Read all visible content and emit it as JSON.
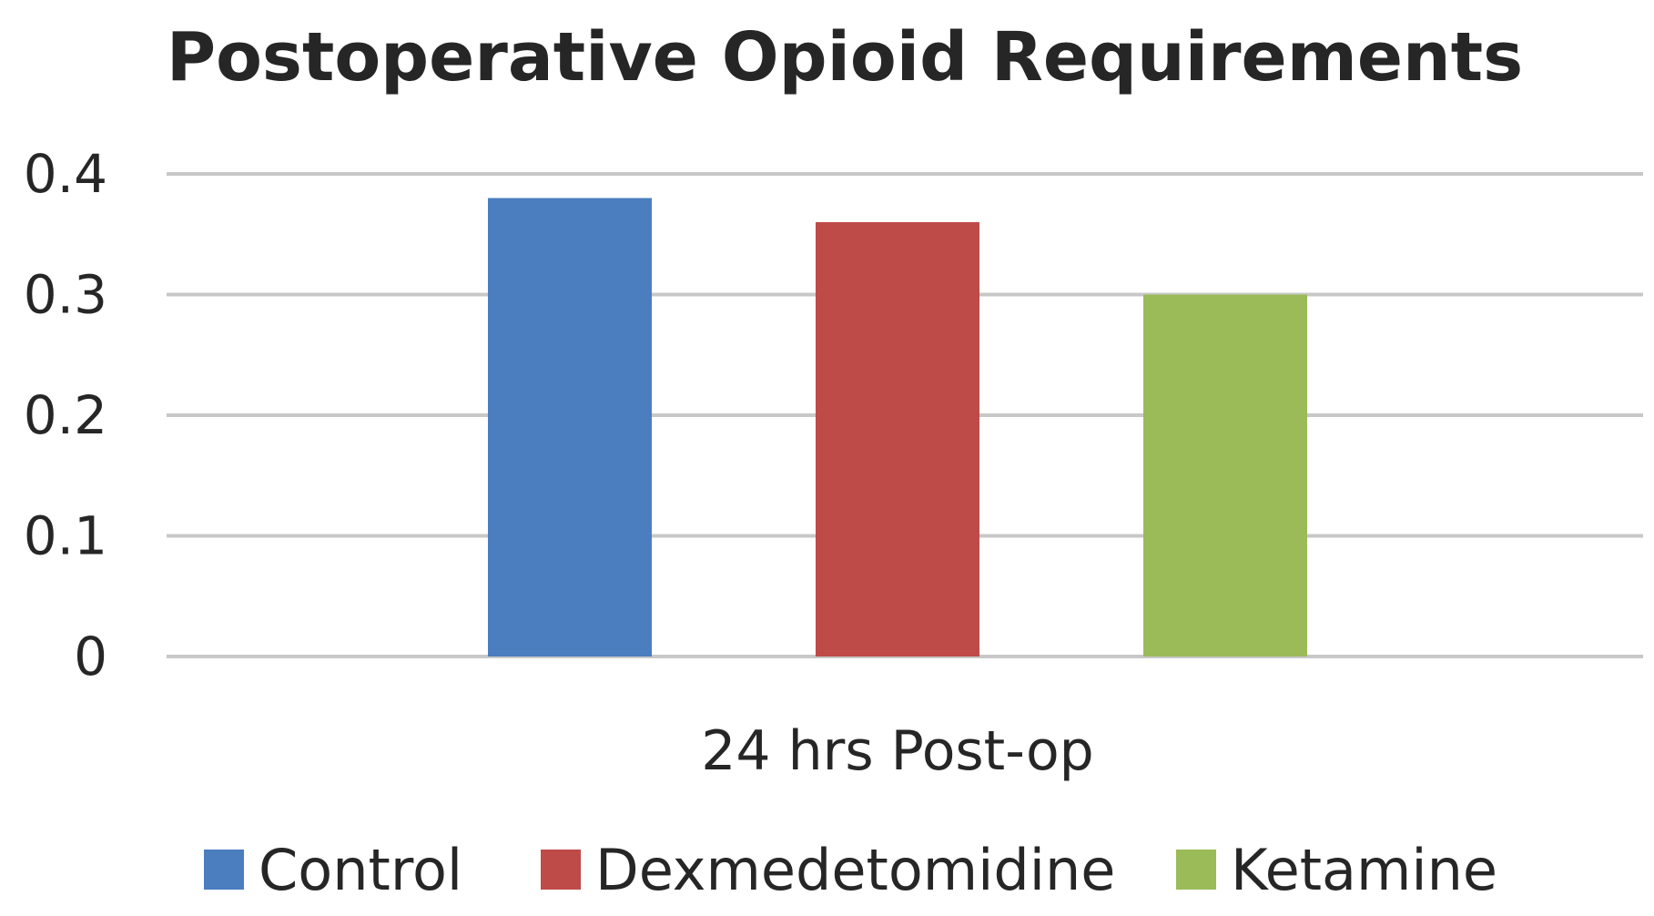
{
  "chart_data": {
    "type": "bar",
    "title": "Postoperative Opioid Requirements",
    "xlabel": "",
    "ylabel": "",
    "categories": [
      "24 hrs Post-op"
    ],
    "series": [
      {
        "name": "Control",
        "values": [
          0.38
        ],
        "color": "#4a7ebf"
      },
      {
        "name": "Dexmedetomidine",
        "values": [
          0.36
        ],
        "color": "#be4b48"
      },
      {
        "name": "Ketamine",
        "values": [
          0.3
        ],
        "color": "#9bbb59"
      }
    ],
    "ylim": [
      0,
      0.4
    ],
    "yticks": [
      "0",
      "0.1",
      "0.2",
      "0.3",
      "0.4"
    ],
    "ytick_values": [
      0,
      0.1,
      0.2,
      0.3,
      0.4
    ],
    "grid": true,
    "legend": "bottom"
  }
}
